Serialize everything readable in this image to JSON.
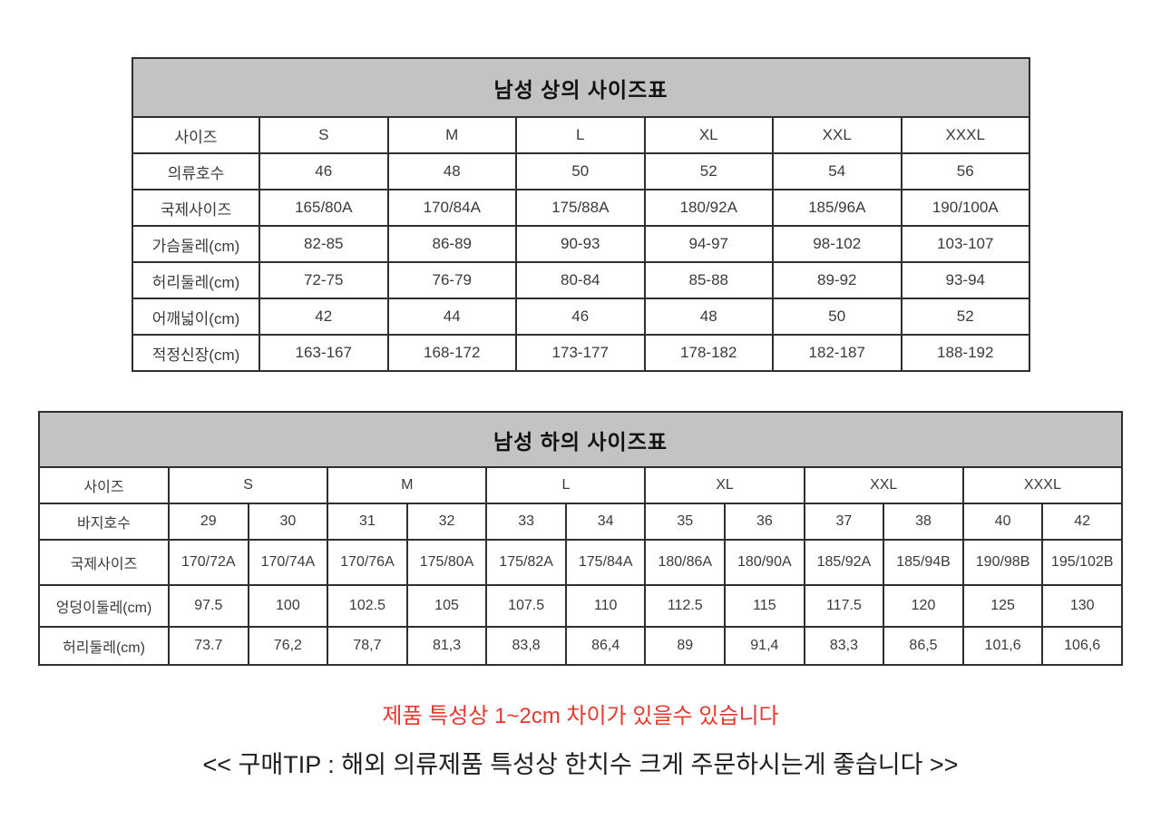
{
  "colors": {
    "header_bg": "#c3c3c3",
    "border": "#2f2f2f",
    "cell_text": "#3a3a3a",
    "title_text": "#121212",
    "warning_red": "#e8372f"
  },
  "top_table": {
    "title": "남성 상의 사이즈표",
    "rows": [
      [
        "사이즈",
        "S",
        "M",
        "L",
        "XL",
        "XXL",
        "XXXL"
      ],
      [
        "의류호수",
        "46",
        "48",
        "50",
        "52",
        "54",
        "56"
      ],
      [
        "국제사이즈",
        "165/80A",
        "170/84A",
        "175/88A",
        "180/92A",
        "185/96A",
        "190/100A"
      ],
      [
        "가슴둘레(cm)",
        "82-85",
        "86-89",
        "90-93",
        "94-97",
        "98-102",
        "103-107"
      ],
      [
        "허리둘레(cm)",
        "72-75",
        "76-79",
        "80-84",
        "85-88",
        "89-92",
        "93-94"
      ],
      [
        "어깨넓이(cm)",
        "42",
        "44",
        "46",
        "48",
        "50",
        "52"
      ],
      [
        "적정신장(cm)",
        "163-167",
        "168-172",
        "173-177",
        "178-182",
        "182-187",
        "188-192"
      ]
    ]
  },
  "bottom_table": {
    "title": "남성 하의 사이즈표",
    "size_row_label": "사이즈",
    "size_row_sizes": [
      "S",
      "M",
      "L",
      "XL",
      "XXL",
      "XXXL"
    ],
    "rows": [
      [
        "바지호수",
        "29",
        "30",
        "31",
        "32",
        "33",
        "34",
        "35",
        "36",
        "37",
        "38",
        "40",
        "42"
      ],
      [
        "국제사이즈",
        "170/72A",
        "170/74A",
        "170/76A",
        "175/80A",
        "175/82A",
        "175/84A",
        "180/86A",
        "180/90A",
        "185/92A",
        "185/94B",
        "190/98B",
        "195/102B"
      ],
      [
        "엉덩이둘레(cm)",
        "97.5",
        "100",
        "102.5",
        "105",
        "107.5",
        "110",
        "112.5",
        "115",
        "117.5",
        "120",
        "125",
        "130"
      ],
      [
        "허리둘레(cm)",
        "73.7",
        "76,2",
        "78,7",
        "81,3",
        "83,8",
        "86,4",
        "89",
        "91,4",
        "83,3",
        "86,5",
        "101,6",
        "106,6"
      ]
    ]
  },
  "footer": {
    "warning": "제품 특성상 1~2cm 차이가 있을수 있습니다",
    "tip": "<< 구매TIP : 해외 의류제품 특성상 한치수 크게 주문하시는게 좋습니다 >>"
  }
}
